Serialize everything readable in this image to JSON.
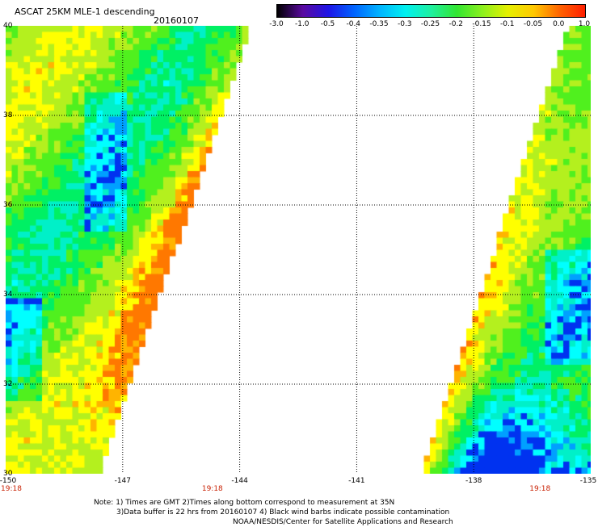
{
  "header": {
    "title": "ASCAT 25KM MLE-1 descending",
    "date": "20160107"
  },
  "colorbar": {
    "labels": [
      "-3.0",
      "-1.0",
      "-0.5",
      "-0.4",
      "-0.35",
      "-0.3",
      "-0.25",
      "-0.2",
      "-0.15",
      "-0.1",
      "-0.05",
      "0.0",
      "1.0"
    ],
    "colors": [
      "#000000",
      "#5a0aa0",
      "#1e14e6",
      "#0064ff",
      "#00b4ff",
      "#00f0f0",
      "#1ef0a0",
      "#32e632",
      "#8cf01e",
      "#e6f000",
      "#ffc800",
      "#ff6400",
      "#ff1e00"
    ]
  },
  "map": {
    "lon_range": [
      -150,
      -135
    ],
    "lat_range": [
      30,
      40
    ],
    "lon_ticks": [
      "-150",
      "-147",
      "-144",
      "-141",
      "-138",
      "-135"
    ],
    "lat_ticks": [
      "40",
      "38",
      "36",
      "34",
      "32",
      "30"
    ],
    "time_labels": [
      {
        "text": "19:18",
        "lon": -150
      },
      {
        "text": "19:18",
        "lon": -144.7
      },
      {
        "text": "19:18",
        "lon": -136.3
      }
    ]
  },
  "footer": {
    "note_line1": "Note: 1) Times are GMT 2)Times along bottom correspond to measurement at 35N",
    "note_line2": "3)Data buffer is 22 hrs from 20160107 4) Black wind barbs indicate possible contamination",
    "note_line3": "NOAA/NESDIS/Center for Satellite Applications and Research"
  }
}
